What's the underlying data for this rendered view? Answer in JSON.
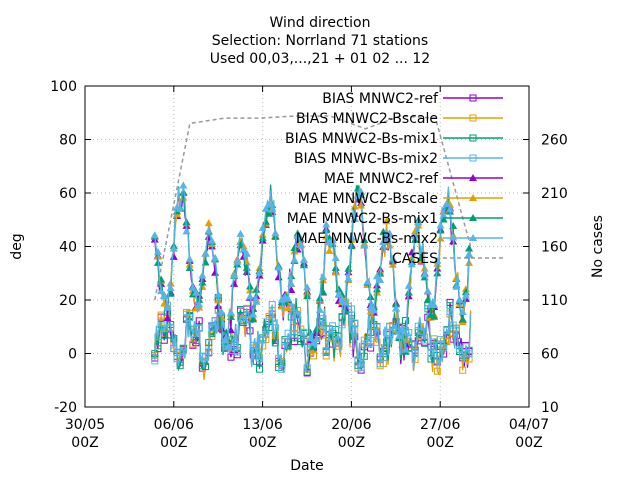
{
  "chart_data": {
    "type": "line",
    "title": [
      "Wind direction",
      "Selection: Norrland     71 stations",
      "Used 00,03,...,21 + 01 02 ... 12"
    ],
    "xlabel": "Date",
    "ylabel": "deg",
    "y2label": "No cases",
    "x_ticks": [
      "30/05\n00Z",
      "06/06\n00Z",
      "13/06\n00Z",
      "20/06\n00Z",
      "27/06\n00Z",
      "04/07\n00Z"
    ],
    "y_ticks": [
      -20,
      0,
      20,
      40,
      60,
      80,
      100
    ],
    "y2_ticks": [
      10,
      60,
      110,
      160,
      210,
      260
    ],
    "ylim": [
      -20,
      100
    ],
    "y2lim": [
      10,
      310
    ],
    "grid": true,
    "legend_position": "top-right",
    "series": [
      {
        "name": "BIAS MNWC2-ref",
        "color": "#9400d3",
        "marker": "square"
      },
      {
        "name": "BIAS MNWC2-Bscale",
        "color": "#e69f00",
        "marker": "square"
      },
      {
        "name": "BIAS MNWC2-Bs-mix1",
        "color": "#009e73",
        "marker": "square"
      },
      {
        "name": "BIAS MNWC-Bs-mix2",
        "color": "#56b4e9",
        "marker": "square"
      },
      {
        "name": "MAE MNWC2-ref",
        "color": "#9400d3",
        "marker": "triangle"
      },
      {
        "name": "MAE MNWC2-Bscale",
        "color": "#e69f00",
        "marker": "triangle"
      },
      {
        "name": "MAE MNWC2-Bs-mix1",
        "color": "#009e73",
        "marker": "triangle"
      },
      {
        "name": "MAE MNWC-Bs-mix2",
        "color": "#56b4e9",
        "marker": "triangle"
      },
      {
        "name": "CASES",
        "color": "#999999",
        "marker": "none",
        "dash": true
      }
    ],
    "x_range_days": [
      0,
      35
    ],
    "data_range_days": [
      5.5,
      30.4
    ],
    "cases_values": [
      110,
      275,
      280,
      280,
      282,
      282,
      270,
      282,
      280,
      160
    ]
  }
}
